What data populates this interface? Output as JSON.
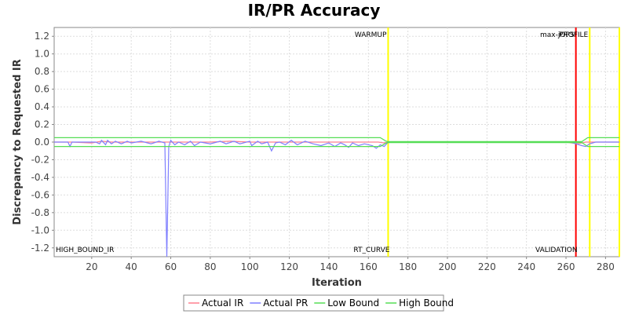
{
  "chart_data": {
    "type": "line",
    "title": "IR/PR Accuracy",
    "xlabel": "Iteration",
    "ylabel": "Discrepancy to Requested IR",
    "xlim": [
      1,
      287
    ],
    "ylim": [
      -1.3,
      1.3
    ],
    "x_ticks": [
      20,
      40,
      60,
      80,
      100,
      120,
      140,
      160,
      180,
      200,
      220,
      240,
      260,
      280
    ],
    "y_ticks": [
      1.2,
      1.0,
      0.8,
      0.6,
      0.4,
      0.2,
      0.0,
      -0.2,
      -0.4,
      -0.6,
      -0.8,
      -1.0,
      -1.2
    ],
    "y_tick_labels": [
      "1.2",
      "1.0",
      "0.8",
      "0.6",
      "0.4",
      "0.2",
      "0.0",
      "-0.2",
      "-0.4",
      "-0.6",
      "-0.8",
      "-1.0",
      "-1.2"
    ],
    "grid": true,
    "legend_position": "bottom",
    "series": [
      {
        "name": "Actual IR",
        "color": "#ff7f8f",
        "points": [
          [
            1,
            0.0
          ],
          [
            10,
            0.0
          ],
          [
            20,
            -0.01
          ],
          [
            25,
            0.01
          ],
          [
            30,
            0.0
          ],
          [
            40,
            0.0
          ],
          [
            50,
            0.0
          ],
          [
            60,
            0.0
          ],
          [
            70,
            0.0
          ],
          [
            80,
            0.0
          ],
          [
            90,
            0.01
          ],
          [
            100,
            0.0
          ],
          [
            110,
            0.0
          ],
          [
            120,
            0.0
          ],
          [
            130,
            0.0
          ],
          [
            140,
            0.0
          ],
          [
            150,
            0.0
          ],
          [
            160,
            0.0
          ],
          [
            165,
            0.0
          ],
          [
            168,
            -0.01
          ],
          [
            170,
            0.0
          ],
          [
            200,
            0.0
          ],
          [
            230,
            0.0
          ],
          [
            260,
            0.0
          ],
          [
            263,
            -0.01
          ],
          [
            266,
            -0.02
          ],
          [
            270,
            0.0
          ],
          [
            280,
            0.0
          ],
          [
            287,
            0.0
          ]
        ]
      },
      {
        "name": "Actual PR",
        "color": "#7f7fff",
        "points": [
          [
            1,
            0.0
          ],
          [
            8,
            0.0
          ],
          [
            9,
            -0.05
          ],
          [
            10,
            0.0
          ],
          [
            22,
            0.0
          ],
          [
            24,
            -0.02
          ],
          [
            25,
            0.02
          ],
          [
            27,
            -0.03
          ],
          [
            28,
            0.02
          ],
          [
            30,
            -0.02
          ],
          [
            32,
            0.01
          ],
          [
            35,
            -0.02
          ],
          [
            38,
            0.01
          ],
          [
            40,
            -0.01
          ],
          [
            45,
            0.01
          ],
          [
            50,
            -0.02
          ],
          [
            54,
            0.01
          ],
          [
            57,
            -0.01
          ],
          [
            58,
            -1.3
          ],
          [
            59,
            -0.05
          ],
          [
            60,
            0.02
          ],
          [
            62,
            -0.03
          ],
          [
            64,
            0.0
          ],
          [
            67,
            -0.03
          ],
          [
            70,
            0.01
          ],
          [
            72,
            -0.04
          ],
          [
            75,
            0.0
          ],
          [
            80,
            -0.02
          ],
          [
            85,
            0.01
          ],
          [
            88,
            -0.02
          ],
          [
            92,
            0.01
          ],
          [
            95,
            -0.02
          ],
          [
            100,
            0.01
          ],
          [
            101,
            -0.04
          ],
          [
            104,
            0.01
          ],
          [
            106,
            -0.02
          ],
          [
            109,
            0.0
          ],
          [
            111,
            -0.1
          ],
          [
            113,
            -0.01
          ],
          [
            115,
            0.0
          ],
          [
            118,
            -0.03
          ],
          [
            121,
            0.02
          ],
          [
            124,
            -0.03
          ],
          [
            128,
            0.01
          ],
          [
            132,
            -0.02
          ],
          [
            136,
            -0.04
          ],
          [
            140,
            -0.01
          ],
          [
            143,
            -0.05
          ],
          [
            146,
            -0.01
          ],
          [
            148,
            -0.03
          ],
          [
            150,
            -0.06
          ],
          [
            152,
            -0.01
          ],
          [
            155,
            -0.04
          ],
          [
            158,
            -0.02
          ],
          [
            162,
            -0.04
          ],
          [
            164,
            -0.07
          ],
          [
            166,
            -0.03
          ],
          [
            168,
            -0.05
          ],
          [
            170,
            0.0
          ],
          [
            180,
            0.0
          ],
          [
            200,
            0.0
          ],
          [
            230,
            0.0
          ],
          [
            262,
            0.0
          ],
          [
            265,
            -0.02
          ],
          [
            268,
            -0.04
          ],
          [
            270,
            -0.05
          ],
          [
            272,
            -0.02
          ],
          [
            275,
            0.0
          ],
          [
            280,
            0.0
          ],
          [
            287,
            0.0
          ]
        ]
      },
      {
        "name": "Low Bound",
        "color": "#55dd55",
        "points": [
          [
            1,
            -0.05
          ],
          [
            166,
            -0.05
          ],
          [
            169,
            -0.01
          ],
          [
            170,
            -0.005
          ],
          [
            268,
            -0.005
          ],
          [
            271,
            -0.05
          ],
          [
            287,
            -0.05
          ]
        ]
      },
      {
        "name": "High Bound",
        "color": "#55dd55",
        "points": [
          [
            1,
            0.05
          ],
          [
            166,
            0.05
          ],
          [
            169,
            0.01
          ],
          [
            170,
            0.005
          ],
          [
            268,
            0.005
          ],
          [
            271,
            0.05
          ],
          [
            287,
            0.05
          ]
        ]
      }
    ],
    "markers": [
      {
        "x": 170,
        "color": "#ffff00",
        "label_top": "WARMUP",
        "label_bottom": "RT_CURVE"
      },
      {
        "x": 265,
        "color": "#ff0000",
        "label_top": "max-jOPS",
        "label_bottom": "VALIDATION"
      },
      {
        "x": 272,
        "color": "#ffff00",
        "label_top": "PROFILE",
        "label_bottom": ""
      },
      {
        "x": 287,
        "color": "#ffff00",
        "label_top": "",
        "label_bottom": ""
      }
    ],
    "corner_label": "HIGH_BOUND_IR"
  }
}
